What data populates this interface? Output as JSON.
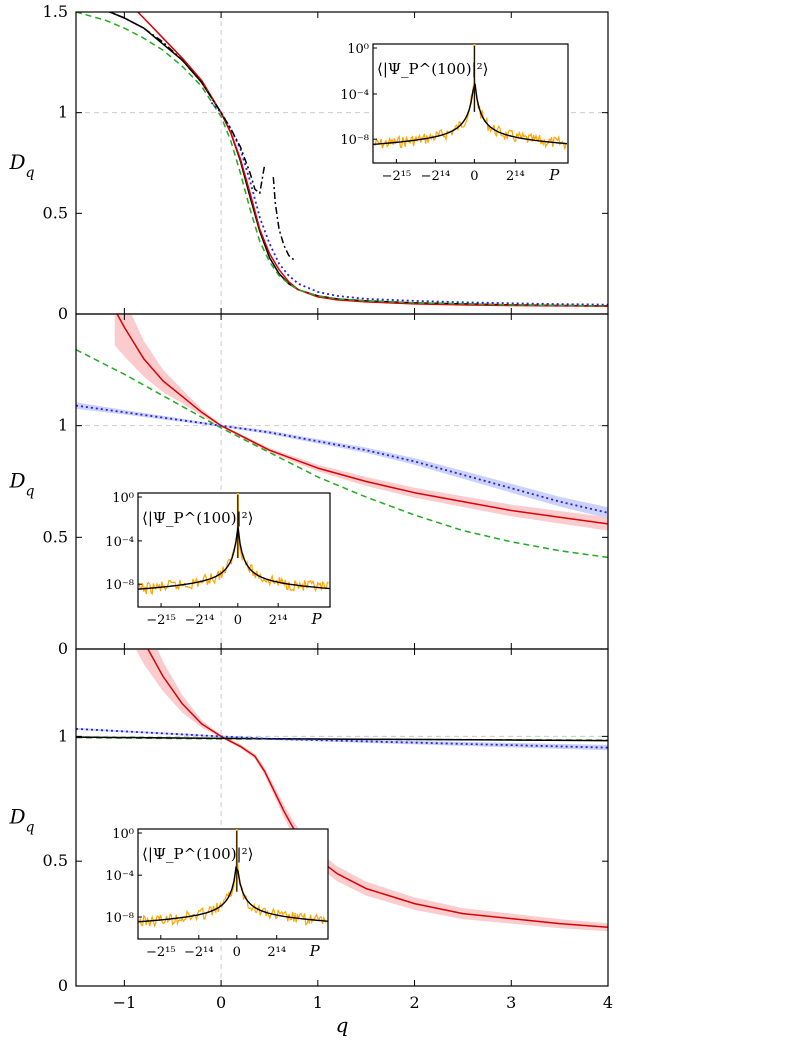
{
  "chart_data": [
    {
      "type": "line",
      "ylabel": "D_q",
      "xlim": [
        -1.5,
        4
      ],
      "ylim": [
        0,
        1.5
      ],
      "grid": "dashed reference lines at q=0 and D_q=1",
      "yticks": [
        {
          "v": 0,
          "t": "0"
        },
        {
          "v": 0.5,
          "t": "0.5"
        },
        {
          "v": 1,
          "t": "1"
        },
        {
          "v": 1.5,
          "t": "1.5"
        }
      ],
      "series": [
        {
          "color": "#000000",
          "dash": "",
          "x": [
            -1.5,
            -1.2,
            -1,
            -0.8,
            -0.6,
            -0.4,
            -0.2,
            0,
            0.1,
            0.2,
            0.3,
            0.4,
            0.5,
            0.6,
            0.7,
            0.8,
            1,
            1.2,
            1.5,
            2,
            2.5,
            3,
            3.5,
            4
          ],
          "y": [
            1.55,
            1.51,
            1.47,
            1.42,
            1.34,
            1.26,
            1.15,
            1,
            0.9,
            0.76,
            0.58,
            0.41,
            0.28,
            0.2,
            0.15,
            0.12,
            0.09,
            0.075,
            0.065,
            0.055,
            0.05,
            0.045,
            0.042,
            0.04
          ]
        },
        {
          "color": "#dd0000",
          "dash": "",
          "x": [
            -0.9,
            -0.8,
            -0.6,
            -0.4,
            -0.2,
            0,
            0.1,
            0.2,
            0.3,
            0.4,
            0.5,
            0.6,
            0.7,
            0.8,
            1,
            1.2,
            1.5,
            2,
            2.5,
            3,
            3.5,
            4
          ],
          "y": [
            1.52,
            1.47,
            1.37,
            1.27,
            1.16,
            1.0,
            0.9,
            0.77,
            0.6,
            0.42,
            0.3,
            0.22,
            0.16,
            0.12,
            0.085,
            0.07,
            0.06,
            0.05,
            0.045,
            0.042,
            0.04,
            0.038
          ]
        },
        {
          "color": "#22aa22",
          "dash": "6,4",
          "x": [
            -1.5,
            -1.2,
            -1,
            -0.8,
            -0.6,
            -0.4,
            -0.2,
            0,
            0.1,
            0.2,
            0.3,
            0.4,
            0.5,
            0.6,
            0.7,
            0.8,
            1,
            1.2,
            1.5,
            2,
            2.5,
            3,
            3.5,
            4
          ],
          "y": [
            1.5,
            1.46,
            1.42,
            1.37,
            1.31,
            1.23,
            1.13,
            0.98,
            0.86,
            0.7,
            0.52,
            0.36,
            0.26,
            0.19,
            0.15,
            0.12,
            0.09,
            0.075,
            0.065,
            0.055,
            0.05,
            0.045,
            0.042,
            0.04
          ]
        },
        {
          "color": "#2222dd",
          "dash": "2,3",
          "x": [
            -0.1,
            0,
            0.1,
            0.2,
            0.3,
            0.4,
            0.5,
            0.6,
            0.7,
            0.8,
            1,
            1.2,
            1.5,
            2,
            2.5,
            3,
            3.5,
            4
          ],
          "y": [
            1.05,
            1.0,
            0.92,
            0.82,
            0.66,
            0.48,
            0.35,
            0.25,
            0.19,
            0.15,
            0.11,
            0.09,
            0.075,
            0.065,
            0.058,
            0.053,
            0.049,
            0.046
          ]
        },
        {
          "color": "#000000",
          "dash": "7,3,2,3",
          "x": [
            -1.5,
            -1.2,
            -1,
            -0.8,
            -0.6,
            -0.4,
            -0.2,
            0,
            0.1,
            0.2,
            0.3,
            0.35,
            0.4,
            0.45
          ],
          "y": [
            1.57,
            1.51,
            1.47,
            1.42,
            1.35,
            1.26,
            1.15,
            1.0,
            0.92,
            0.83,
            0.7,
            0.62,
            0.6,
            0.74
          ]
        },
        {
          "color": "#000000",
          "dash": "7,3,2,3",
          "x": [
            0.54,
            0.56,
            0.6,
            0.65,
            0.7,
            0.75
          ],
          "y": [
            0.68,
            0.55,
            0.42,
            0.34,
            0.29,
            0.27
          ]
        }
      ],
      "inset": {
        "ylabel": "⟨|Ψ_P^(100)|²⟩",
        "xlabel": "P",
        "xticks": [
          "−2¹⁵",
          "−2¹⁴",
          "0",
          "2¹⁴"
        ],
        "yticks": [
          "10⁰",
          "10⁻⁴",
          "10⁻⁸"
        ],
        "colors": {
          "data": "#ffa500",
          "fit": "#000000"
        }
      }
    },
    {
      "type": "line",
      "ylabel": "D_q",
      "xlim": [
        -1.5,
        4
      ],
      "ylim": [
        0,
        1.5
      ],
      "grid": "dashed reference lines at q=0 and D_q=1",
      "yticks": [
        {
          "v": 0,
          "t": "0"
        },
        {
          "v": 0.5,
          "t": "0.5"
        },
        {
          "v": 1,
          "t": "1"
        }
      ],
      "series": [
        {
          "color": "#dd0000",
          "dash": "",
          "band": "#f9c6c9",
          "x": [
            -1.1,
            -1,
            -0.8,
            -0.6,
            -0.4,
            -0.2,
            0,
            0.5,
            1,
            1.5,
            2,
            2.5,
            3,
            3.5,
            4
          ],
          "y": [
            1.52,
            1.44,
            1.3,
            1.2,
            1.13,
            1.06,
            1.0,
            0.89,
            0.81,
            0.75,
            0.7,
            0.66,
            0.62,
            0.59,
            0.56
          ],
          "err": [
            0.16,
            0.13,
            0.08,
            0.05,
            0.03,
            0.015,
            0.005,
            0.01,
            0.015,
            0.02,
            0.022,
            0.024,
            0.026,
            0.028,
            0.03
          ]
        },
        {
          "color": "#22aa22",
          "dash": "6,4",
          "x": [
            -1.5,
            -1,
            -0.5,
            0,
            0.5,
            1,
            1.5,
            2,
            2.5,
            3,
            3.5,
            4
          ],
          "y": [
            1.34,
            1.23,
            1.11,
            0.99,
            0.88,
            0.77,
            0.68,
            0.6,
            0.53,
            0.48,
            0.44,
            0.41
          ]
        },
        {
          "color": "#2222dd",
          "dash": "2,3",
          "band": "#c8cdfa",
          "x": [
            -1.5,
            -1,
            -0.5,
            0,
            0.5,
            1,
            1.5,
            2,
            2.5,
            3,
            3.5,
            4
          ],
          "y": [
            1.09,
            1.06,
            1.03,
            1.0,
            0.97,
            0.93,
            0.89,
            0.84,
            0.78,
            0.72,
            0.66,
            0.61
          ],
          "err": [
            0.015,
            0.01,
            0.008,
            0.005,
            0.008,
            0.01,
            0.012,
            0.015,
            0.018,
            0.02,
            0.022,
            0.025
          ]
        }
      ],
      "inset": {
        "ylabel": "⟨|Ψ_P^(100)|²⟩",
        "xlabel": "P",
        "xticks": [
          "−2¹⁵",
          "−2¹⁴",
          "0",
          "2¹⁴"
        ],
        "yticks": [
          "10⁰",
          "10⁻⁴",
          "10⁻⁸"
        ],
        "colors": {
          "data": "#ffa500",
          "fit": "#000000"
        }
      }
    },
    {
      "type": "line",
      "xlabel": "q",
      "ylabel": "D_q",
      "xlim": [
        -1.5,
        4
      ],
      "ylim": [
        0,
        1.5
      ],
      "grid": "dashed reference lines at q=0 and D_q=1",
      "xticks": [
        {
          "v": -1,
          "t": "−1"
        },
        {
          "v": 0,
          "t": "0"
        },
        {
          "v": 1,
          "t": "1"
        },
        {
          "v": 2,
          "t": "2"
        },
        {
          "v": 3,
          "t": "3"
        },
        {
          "v": 4,
          "t": "4"
        }
      ],
      "yticks": [
        {
          "v": 0,
          "t": "0"
        },
        {
          "v": 0.5,
          "t": "0.5"
        },
        {
          "v": 1,
          "t": "1"
        }
      ],
      "series": [
        {
          "color": "#dd0000",
          "dash": "",
          "band": "#f9c6c9",
          "x": [
            -0.95,
            -0.8,
            -0.6,
            -0.4,
            -0.2,
            0,
            0.2,
            0.35,
            0.45,
            0.55,
            0.65,
            0.75,
            0.85,
            1,
            1.2,
            1.5,
            2,
            2.5,
            3,
            3.5,
            4
          ],
          "y": [
            1.52,
            1.38,
            1.24,
            1.13,
            1.05,
            1.0,
            0.96,
            0.92,
            0.86,
            0.78,
            0.7,
            0.63,
            0.57,
            0.51,
            0.45,
            0.39,
            0.33,
            0.29,
            0.27,
            0.25,
            0.235
          ],
          "err": [
            0.12,
            0.09,
            0.06,
            0.035,
            0.015,
            0.005,
            0.008,
            0.01,
            0.015,
            0.02,
            0.025,
            0.03,
            0.03,
            0.03,
            0.03,
            0.028,
            0.025,
            0.022,
            0.02,
            0.018,
            0.016
          ]
        },
        {
          "color": "#22aa22",
          "dash": "6,4",
          "x": [
            -1.5,
            0,
            4
          ],
          "y": [
            0.995,
            0.99,
            0.985
          ]
        },
        {
          "color": "#000000",
          "dash": "",
          "x": [
            -1.5,
            0,
            4
          ],
          "y": [
            0.997,
            0.992,
            0.983
          ]
        },
        {
          "color": "#2222dd",
          "dash": "2,3",
          "band": "#c8cdfa",
          "x": [
            -1.5,
            -1,
            -0.5,
            0,
            0.5,
            1,
            1.5,
            2,
            2.5,
            3,
            3.5,
            4
          ],
          "y": [
            1.03,
            1.02,
            1.01,
            1.0,
            0.99,
            0.985,
            0.98,
            0.975,
            0.97,
            0.965,
            0.96,
            0.955
          ],
          "err": [
            0.004,
            0.004,
            0.004,
            0.003,
            0.004,
            0.005,
            0.006,
            0.007,
            0.008,
            0.009,
            0.01,
            0.011
          ]
        }
      ],
      "inset": {
        "ylabel": "⟨|Ψ_P^(100)|²⟩",
        "xlabel": "P",
        "xticks": [
          "−2¹⁵",
          "−2¹⁴",
          "0",
          "2¹⁴"
        ],
        "yticks": [
          "10⁰",
          "10⁻⁴",
          "10⁻⁸"
        ],
        "colors": {
          "data": "#ffa500",
          "fit": "#000000"
        }
      }
    }
  ]
}
